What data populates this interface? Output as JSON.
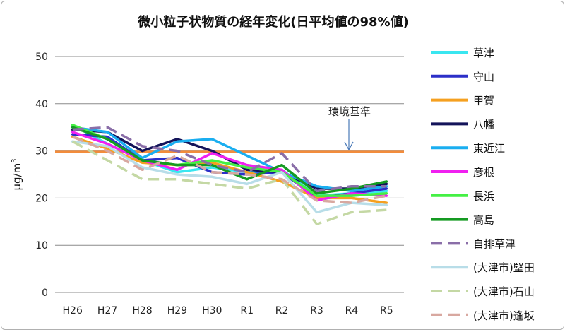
{
  "chart_data": {
    "type": "line",
    "title": "微小粒子状物質の経年変化(日平均値の98%値)",
    "ylabel": "μg/m",
    "ylabel_sup": "3",
    "ylim": [
      0,
      50
    ],
    "yticks": [
      0,
      10,
      20,
      30,
      40,
      50
    ],
    "grid": true,
    "legend_position": "right",
    "categories": [
      "H26",
      "H27",
      "H28",
      "H29",
      "H30",
      "R1",
      "R2",
      "R3",
      "R4",
      "R5"
    ],
    "reference_line": {
      "value": 29.8,
      "label": "環境基準",
      "color": "#F28C3C"
    },
    "series": [
      {
        "name": "草津",
        "color": "#39E6F0",
        "dash": false,
        "values": [
          35.5,
          31.5,
          28.0,
          25.5,
          26.5,
          25.5,
          26.0,
          20.5,
          21.0,
          21.5
        ]
      },
      {
        "name": "守山",
        "color": "#2B2FC8",
        "dash": false,
        "values": [
          33.5,
          33.0,
          28.0,
          28.5,
          25.5,
          25.0,
          25.5,
          20.0,
          21.0,
          22.0
        ]
      },
      {
        "name": "甲賀",
        "color": "#F5A020",
        "dash": false,
        "values": [
          33.0,
          30.5,
          27.5,
          27.0,
          27.5,
          25.5,
          23.5,
          20.0,
          20.0,
          19.0
        ]
      },
      {
        "name": "八幡",
        "color": "#14145A",
        "dash": false,
        "values": [
          34.5,
          34.0,
          30.0,
          32.5,
          30.0,
          26.0,
          25.5,
          22.0,
          22.0,
          23.0
        ]
      },
      {
        "name": "東近江",
        "color": "#1AAEF0",
        "dash": false,
        "values": [
          35.0,
          34.0,
          28.5,
          32.0,
          32.5,
          29.0,
          25.5,
          22.5,
          21.5,
          22.5
        ]
      },
      {
        "name": "彦根",
        "color": "#F020F0",
        "dash": false,
        "values": [
          34.0,
          31.5,
          28.0,
          26.0,
          29.5,
          27.0,
          26.0,
          19.5,
          21.0,
          20.5
        ]
      },
      {
        "name": "長浜",
        "color": "#44F044",
        "dash": false,
        "values": [
          35.5,
          32.5,
          28.0,
          27.0,
          28.0,
          26.5,
          25.5,
          20.5,
          20.5,
          21.0
        ]
      },
      {
        "name": "高島",
        "color": "#159A22",
        "dash": false,
        "values": [
          35.0,
          32.5,
          28.0,
          27.0,
          27.0,
          24.0,
          27.0,
          21.0,
          22.0,
          23.5
        ]
      },
      {
        "name": "自排草津",
        "color": "#8A6EA8",
        "dash": true,
        "values": [
          34.5,
          35.0,
          31.0,
          30.0,
          27.0,
          25.5,
          29.5,
          21.5,
          22.5,
          22.5
        ]
      },
      {
        "name": "(大津市)堅田",
        "color": "#B8DDE8",
        "dash": false,
        "values": [
          32.0,
          31.0,
          26.5,
          25.0,
          24.5,
          23.0,
          25.5,
          17.0,
          19.0,
          18.5
        ]
      },
      {
        "name": "(大津市)石山",
        "color": "#C4D8A4",
        "dash": true,
        "values": [
          32.0,
          28.0,
          24.0,
          24.0,
          23.0,
          22.0,
          24.0,
          14.5,
          17.0,
          17.5
        ]
      },
      {
        "name": "(大津市)逢坂",
        "color": "#D8A8A0",
        "dash": true,
        "values": [
          33.0,
          30.0,
          26.0,
          29.0,
          25.5,
          25.0,
          24.0,
          19.5,
          19.0,
          20.5
        ]
      }
    ]
  }
}
